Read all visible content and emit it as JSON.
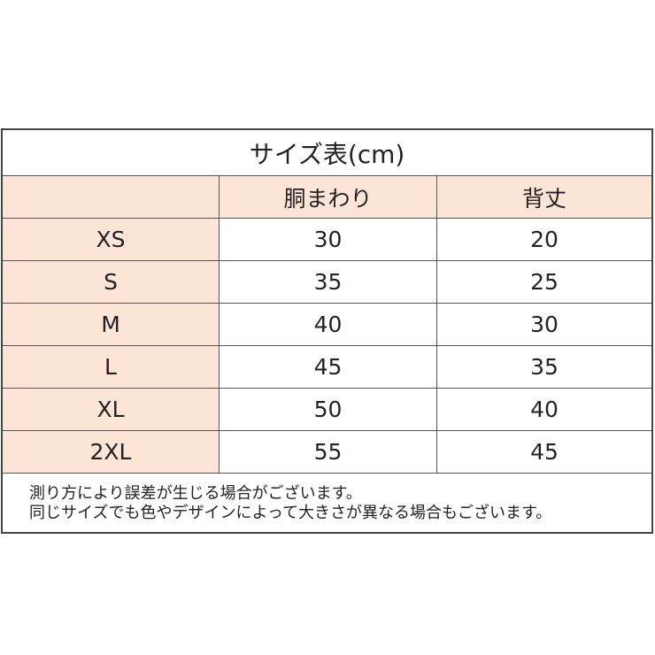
{
  "title": "サイズ表(cm)",
  "columns": [
    "",
    "胴まわり",
    "背丈"
  ],
  "accent_color": "#fce4d6",
  "rows": [
    {
      "size": "XS",
      "waist": "30",
      "length": "20"
    },
    {
      "size": "S",
      "waist": "35",
      "length": "25"
    },
    {
      "size": "M",
      "waist": "40",
      "length": "30"
    },
    {
      "size": "L",
      "waist": "45",
      "length": "35"
    },
    {
      "size": "XL",
      "waist": "50",
      "length": "40"
    },
    {
      "size": "2XL",
      "waist": "55",
      "length": "45"
    }
  ],
  "notes": [
    "測り方により誤差が生じる場合がございます。",
    "同じサイズでも色やデザインによって大きさが異なる場合もございます。"
  ]
}
